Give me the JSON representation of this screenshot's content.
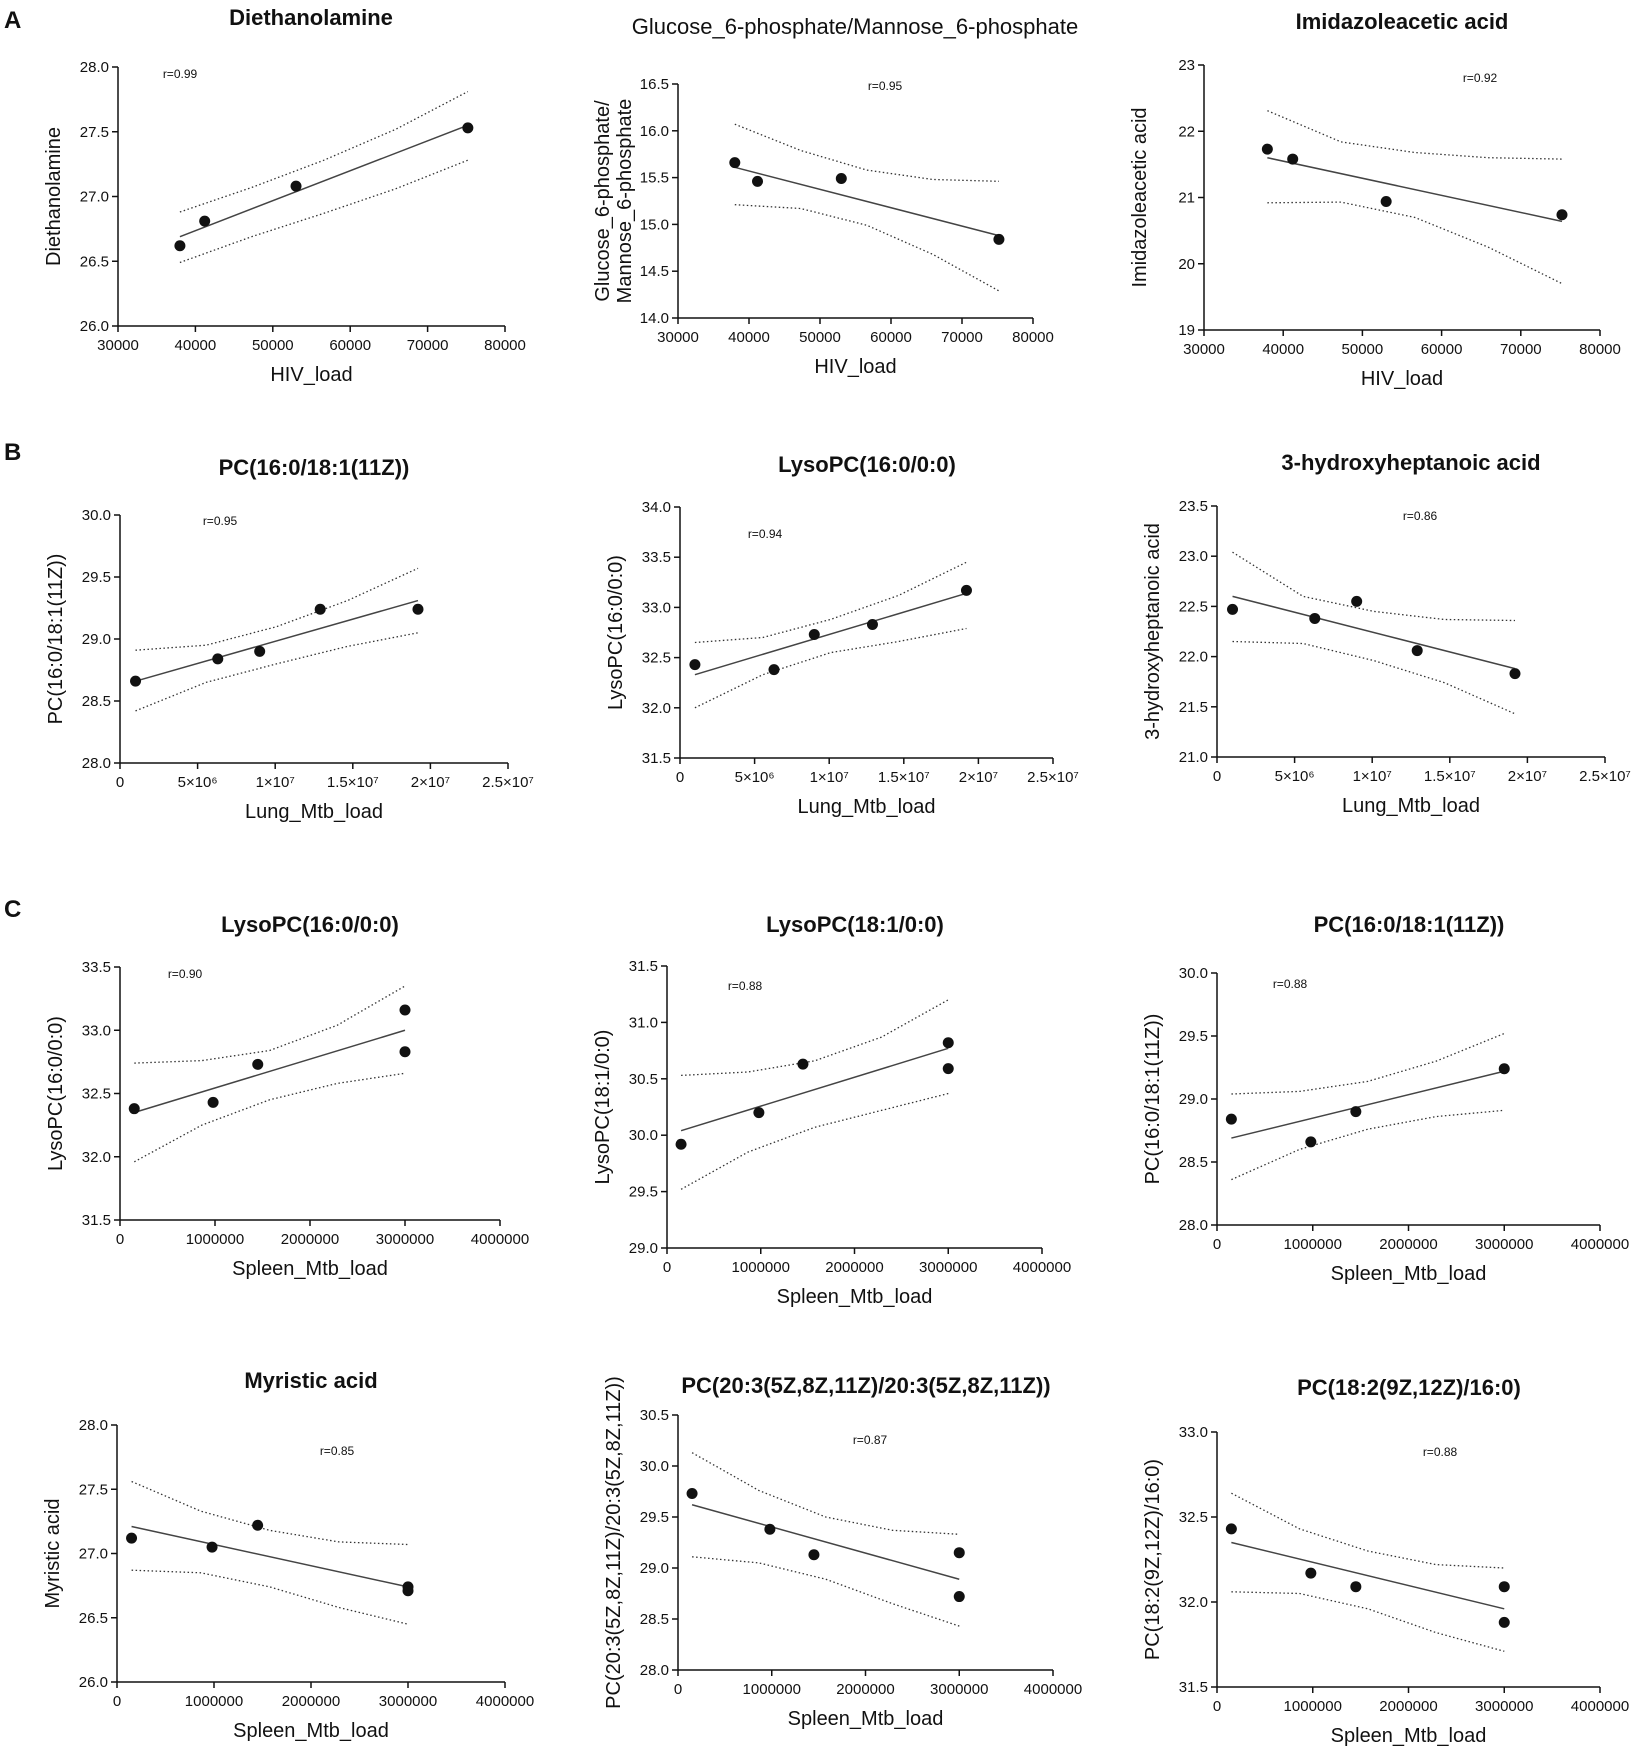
{
  "figure": {
    "panel_letters": [
      "A",
      "B",
      "C"
    ],
    "colors": {
      "ink": "#111111",
      "fit_line": "#444444",
      "ci_line": "#333333"
    }
  },
  "chart_data": [
    {
      "type": "scatter",
      "title": "Diethanolamine",
      "title_bold": true,
      "xlabel": "HIV_load",
      "ylabel": [
        "Diethanolamine"
      ],
      "r": "r=0.99",
      "xlim": [
        30000,
        80000
      ],
      "xticks": [
        "30000",
        "40000",
        "50000",
        "60000",
        "70000",
        "80000"
      ],
      "ylim": [
        26.0,
        28.0
      ],
      "yticks": [
        "26.0",
        "26.5",
        "27.0",
        "27.5",
        "28.0"
      ],
      "points": [
        [
          38000,
          26.62
        ],
        [
          41200,
          26.81
        ],
        [
          53000,
          27.08
        ],
        [
          75200,
          27.53
        ]
      ],
      "fit": {
        "x": [
          38000,
          75200
        ],
        "y": [
          26.69,
          27.55
        ]
      },
      "ci": {
        "upper": [
          26.88,
          27.07,
          27.28,
          27.52,
          27.81
        ],
        "lower": [
          26.49,
          26.69,
          26.87,
          27.06,
          27.28
        ]
      }
    },
    {
      "type": "scatter",
      "title": "Glucose_6-phosphate/Mannose_6-phosphate",
      "title_bold": false,
      "xlabel": "HIV_load",
      "ylabel": [
        "Glucose_6-phosphate/",
        "Mannose_6-phosphate"
      ],
      "r": "r=0.95",
      "xlim": [
        30000,
        80000
      ],
      "xticks": [
        "30000",
        "40000",
        "50000",
        "60000",
        "70000",
        "80000"
      ],
      "ylim": [
        14.0,
        16.5
      ],
      "yticks": [
        "14.0",
        "14.5",
        "15.0",
        "15.5",
        "16.0",
        "16.5"
      ],
      "points": [
        [
          38000,
          15.66
        ],
        [
          41200,
          15.46
        ],
        [
          53000,
          15.49
        ],
        [
          75200,
          14.84
        ]
      ],
      "fit": {
        "x": [
          38000,
          75200
        ],
        "y": [
          15.61,
          14.88
        ]
      },
      "ci": {
        "upper": [
          16.07,
          15.79,
          15.58,
          15.48,
          15.46
        ],
        "lower": [
          15.21,
          15.17,
          14.99,
          14.68,
          14.29
        ]
      }
    },
    {
      "type": "scatter",
      "title": "Imidazoleacetic acid",
      "title_bold": true,
      "xlabel": "HIV_load",
      "ylabel": [
        "Imidazoleacetic acid"
      ],
      "r": "r=0.92",
      "xlim": [
        30000,
        80000
      ],
      "xticks": [
        "30000",
        "40000",
        "50000",
        "60000",
        "70000",
        "80000"
      ],
      "ylim": [
        19,
        23
      ],
      "yticks": [
        "19",
        "20",
        "21",
        "22",
        "23"
      ],
      "points": [
        [
          38000,
          21.73
        ],
        [
          41200,
          21.58
        ],
        [
          53000,
          20.94
        ],
        [
          75200,
          20.74
        ]
      ],
      "fit": {
        "x": [
          38000,
          75200
        ],
        "y": [
          21.6,
          20.64
        ]
      },
      "ci": {
        "upper": [
          22.31,
          21.84,
          21.68,
          21.6,
          21.58
        ],
        "lower": [
          20.92,
          20.93,
          20.7,
          20.25,
          19.7
        ]
      }
    },
    {
      "type": "scatter",
      "title": "PC(16:0/18:1(11Z))",
      "title_bold": true,
      "xlabel": "Lung_Mtb_load",
      "ylabel": [
        "PC(16:0/18:1(11Z))"
      ],
      "r": "r=0.95",
      "xlim": [
        0,
        25000000
      ],
      "xticks": [
        "0",
        "5×10⁶",
        "1×10⁷",
        "1.5×10⁷",
        "2×10⁷",
        "2.5×10⁷"
      ],
      "ylim": [
        28.0,
        30.0
      ],
      "yticks": [
        "28.0",
        "28.5",
        "29.0",
        "29.5",
        "30.0"
      ],
      "points": [
        [
          1000000,
          28.66
        ],
        [
          6300000,
          28.84
        ],
        [
          9000000,
          28.9
        ],
        [
          12900000,
          29.24
        ],
        [
          19200000,
          29.24
        ]
      ],
      "fit": {
        "x": [
          1000000,
          19200000
        ],
        "y": [
          28.66,
          29.31
        ]
      },
      "ci": {
        "upper": [
          28.91,
          28.95,
          29.1,
          29.31,
          29.57
        ],
        "lower": [
          28.42,
          28.65,
          28.8,
          28.94,
          29.05
        ]
      }
    },
    {
      "type": "scatter",
      "title": "LysoPC(16:0/0:0)",
      "title_bold": true,
      "xlabel": "Lung_Mtb_load",
      "ylabel": [
        "LysoPC(16:0/0:0)"
      ],
      "r": "r=0.94",
      "xlim": [
        0,
        25000000
      ],
      "xticks": [
        "0",
        "5×10⁶",
        "1×10⁷",
        "1.5×10⁷",
        "2×10⁷",
        "2.5×10⁷"
      ],
      "ylim": [
        31.5,
        34.0
      ],
      "yticks": [
        "31.5",
        "32.0",
        "32.5",
        "33.0",
        "33.5",
        "34.0"
      ],
      "points": [
        [
          1000000,
          32.43
        ],
        [
          6300000,
          32.38
        ],
        [
          9000000,
          32.73
        ],
        [
          12900000,
          32.83
        ],
        [
          19200000,
          33.17
        ]
      ],
      "fit": {
        "x": [
          1000000,
          19200000
        ],
        "y": [
          32.33,
          33.14
        ]
      },
      "ci": {
        "upper": [
          32.65,
          32.7,
          32.88,
          33.12,
          33.45
        ],
        "lower": [
          32.0,
          32.33,
          32.55,
          32.66,
          32.79
        ]
      }
    },
    {
      "type": "scatter",
      "title": "3-hydroxyheptanoic acid",
      "title_bold": true,
      "xlabel": "Lung_Mtb_load",
      "ylabel": [
        "3-hydroxyheptanoic acid"
      ],
      "r": "r=0.86",
      "xlim": [
        0,
        25000000
      ],
      "xticks": [
        "0",
        "5×10⁶",
        "1×10⁷",
        "1.5×10⁷",
        "2×10⁷",
        "2.5×10⁷"
      ],
      "ylim": [
        21.0,
        23.5
      ],
      "yticks": [
        "21.0",
        "21.5",
        "22.0",
        "22.5",
        "23.0",
        "23.5"
      ],
      "points": [
        [
          1000000,
          22.47
        ],
        [
          6300000,
          22.38
        ],
        [
          9000000,
          22.55
        ],
        [
          12900000,
          22.06
        ],
        [
          19200000,
          21.83
        ]
      ],
      "fit": {
        "x": [
          1000000,
          19200000
        ],
        "y": [
          22.6,
          21.88
        ]
      },
      "ci": {
        "upper": [
          23.04,
          22.6,
          22.45,
          22.37,
          22.36
        ],
        "lower": [
          22.15,
          22.13,
          21.96,
          21.74,
          21.43
        ]
      }
    },
    {
      "type": "scatter",
      "title": "LysoPC(16:0/0:0)",
      "title_bold": true,
      "xlabel": "Spleen_Mtb_load",
      "ylabel": [
        "LysoPC(16:0/0:0)"
      ],
      "r": "r=0.90",
      "xlim": [
        0,
        4000000
      ],
      "xticks": [
        "0",
        "1000000",
        "2000000",
        "3000000",
        "4000000"
      ],
      "ylim": [
        31.5,
        33.5
      ],
      "yticks": [
        "31.5",
        "32.0",
        "32.5",
        "33.0",
        "33.5"
      ],
      "points": [
        [
          150000,
          32.38
        ],
        [
          980000,
          32.43
        ],
        [
          1450000,
          32.73
        ],
        [
          3000000,
          33.16
        ],
        [
          3000000,
          32.83
        ]
      ],
      "fit": {
        "x": [
          150000,
          3000000
        ],
        "y": [
          32.35,
          33.0
        ]
      },
      "ci": {
        "upper": [
          32.74,
          32.76,
          32.84,
          33.04,
          33.35
        ],
        "lower": [
          31.96,
          32.25,
          32.45,
          32.58,
          32.66
        ]
      }
    },
    {
      "type": "scatter",
      "title": "LysoPC(18:1/0:0)",
      "title_bold": true,
      "xlabel": "Spleen_Mtb_load",
      "ylabel": [
        "LysoPC(18:1/0:0)"
      ],
      "r": "r=0.88",
      "xlim": [
        0,
        4000000
      ],
      "xticks": [
        "0",
        "1000000",
        "2000000",
        "3000000",
        "4000000"
      ],
      "ylim": [
        29.0,
        31.5
      ],
      "yticks": [
        "29.0",
        "29.5",
        "30.0",
        "30.5",
        "31.0",
        "31.5"
      ],
      "points": [
        [
          150000,
          29.92
        ],
        [
          980000,
          30.2
        ],
        [
          1450000,
          30.63
        ],
        [
          3000000,
          30.82
        ],
        [
          3000000,
          30.59
        ]
      ],
      "fit": {
        "x": [
          150000,
          3000000
        ],
        "y": [
          30.04,
          30.77
        ]
      },
      "ci": {
        "upper": [
          30.53,
          30.56,
          30.66,
          30.87,
          31.2
        ],
        "lower": [
          29.52,
          29.85,
          30.07,
          30.22,
          30.37
        ]
      }
    },
    {
      "type": "scatter",
      "title": "PC(16:0/18:1(11Z))",
      "title_bold": true,
      "xlabel": "Spleen_Mtb_load",
      "ylabel": [
        "PC(16:0/18:1(11Z))"
      ],
      "r": "r=0.88",
      "xlim": [
        0,
        4000000
      ],
      "xticks": [
        "0",
        "1000000",
        "2000000",
        "3000000",
        "4000000"
      ],
      "ylim": [
        28.0,
        30.0
      ],
      "yticks": [
        "28.0",
        "28.5",
        "29.0",
        "29.5",
        "30.0"
      ],
      "points": [
        [
          150000,
          28.84
        ],
        [
          980000,
          28.66
        ],
        [
          1450000,
          28.9
        ],
        [
          3000000,
          29.24
        ]
      ],
      "fit": {
        "x": [
          150000,
          3000000
        ],
        "y": [
          28.69,
          29.22
        ]
      },
      "ci": {
        "upper": [
          29.04,
          29.06,
          29.14,
          29.3,
          29.52
        ],
        "lower": [
          28.36,
          28.6,
          28.76,
          28.86,
          28.91
        ]
      }
    },
    {
      "type": "scatter",
      "title": "Myristic acid",
      "title_bold": true,
      "xlabel": "Spleen_Mtb_load",
      "ylabel": [
        "Myristic acid"
      ],
      "r": "r=0.85",
      "xlim": [
        0,
        4000000
      ],
      "xticks": [
        "0",
        "1000000",
        "2000000",
        "3000000",
        "4000000"
      ],
      "ylim": [
        26.0,
        28.0
      ],
      "yticks": [
        "26.0",
        "26.5",
        "27.0",
        "27.5",
        "28.0"
      ],
      "points": [
        [
          150000,
          27.12
        ],
        [
          980000,
          27.05
        ],
        [
          1450000,
          27.22
        ],
        [
          3000000,
          26.74
        ],
        [
          3000000,
          26.71
        ]
      ],
      "fit": {
        "x": [
          150000,
          3000000
        ],
        "y": [
          27.21,
          26.74
        ]
      },
      "ci": {
        "upper": [
          27.56,
          27.33,
          27.18,
          27.09,
          27.07
        ],
        "lower": [
          26.87,
          26.85,
          26.74,
          26.58,
          26.45
        ]
      }
    },
    {
      "type": "scatter",
      "title": "PC(20:3(5Z,8Z,11Z)/20:3(5Z,8Z,11Z))",
      "title_bold": true,
      "xlabel": "Spleen_Mtb_load",
      "ylabel": [
        "PC(20:3(5Z,8Z,11Z)/20:3(5Z,8Z,11Z))"
      ],
      "r": "r=0.87",
      "xlim": [
        0,
        4000000
      ],
      "xticks": [
        "0",
        "1000000",
        "2000000",
        "3000000",
        "4000000"
      ],
      "ylim": [
        28.0,
        30.5
      ],
      "yticks": [
        "28.0",
        "28.5",
        "29.0",
        "29.5",
        "30.0",
        "30.5"
      ],
      "points": [
        [
          150000,
          29.73
        ],
        [
          980000,
          29.38
        ],
        [
          1450000,
          29.13
        ],
        [
          3000000,
          29.15
        ],
        [
          3000000,
          28.72
        ]
      ],
      "fit": {
        "x": [
          150000,
          3000000
        ],
        "y": [
          29.62,
          28.89
        ]
      },
      "ci": {
        "upper": [
          30.13,
          29.76,
          29.5,
          29.37,
          29.33
        ],
        "lower": [
          29.11,
          29.05,
          28.89,
          28.65,
          28.43
        ]
      }
    },
    {
      "type": "scatter",
      "title": "PC(18:2(9Z,12Z)/16:0)",
      "title_bold": true,
      "xlabel": "Spleen_Mtb_load",
      "ylabel": [
        "PC(18:2(9Z,12Z)/16:0)"
      ],
      "r": "r=0.88",
      "xlim": [
        0,
        4000000
      ],
      "xticks": [
        "0",
        "1000000",
        "2000000",
        "3000000",
        "4000000"
      ],
      "ylim": [
        31.5,
        33.0
      ],
      "yticks": [
        "31.5",
        "32.0",
        "32.5",
        "33.0"
      ],
      "points": [
        [
          150000,
          32.43
        ],
        [
          980000,
          32.17
        ],
        [
          1450000,
          32.09
        ],
        [
          3000000,
          32.09
        ],
        [
          3000000,
          31.88
        ]
      ],
      "fit": {
        "x": [
          150000,
          3000000
        ],
        "y": [
          32.35,
          31.96
        ]
      },
      "ci": {
        "upper": [
          32.64,
          32.43,
          32.3,
          32.22,
          32.2
        ],
        "lower": [
          32.06,
          32.05,
          31.96,
          31.82,
          31.71
        ]
      }
    }
  ]
}
